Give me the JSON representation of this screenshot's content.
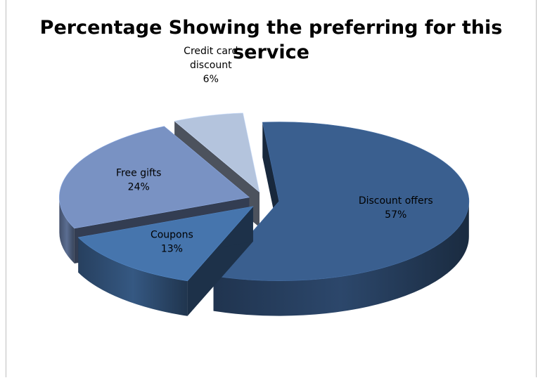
{
  "chart_data": {
    "type": "pie",
    "style": "3d-exploded",
    "title_lines": [
      "Percentage Showing the preferring for this",
      "service"
    ],
    "slices": [
      {
        "label_lines": [
          "Discount offers"
        ],
        "value": 57,
        "display": "57%",
        "color": "#3a5f8f"
      },
      {
        "label_lines": [
          "Coupons"
        ],
        "value": 13,
        "display": "13%",
        "color": "#4675ad"
      },
      {
        "label_lines": [
          "Free gifts"
        ],
        "value": 24,
        "display": "24%",
        "color": "#7992c3"
      },
      {
        "label_lines": [
          "Credit card",
          "discount"
        ],
        "value": 6,
        "display": "6%",
        "color": "#b4c4dd"
      }
    ],
    "legend": "none"
  }
}
